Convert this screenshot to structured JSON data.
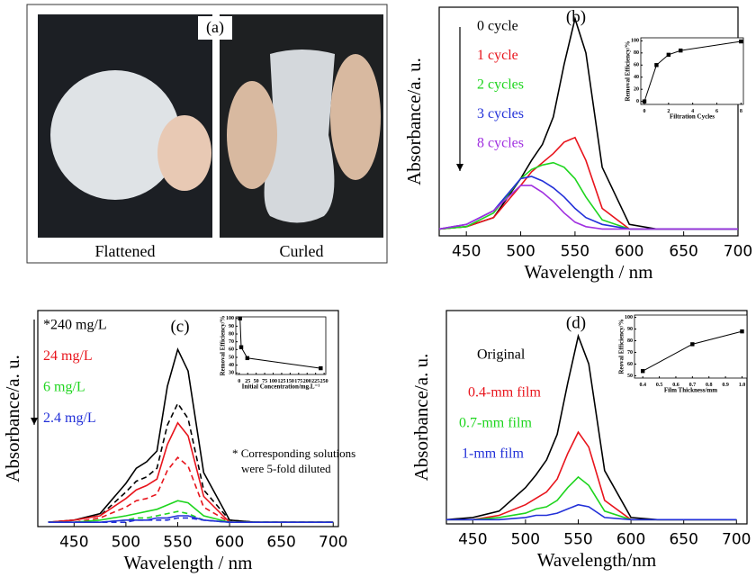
{
  "photo_panel": {
    "label": "(a)",
    "captions": [
      "Flattened",
      "Curled"
    ]
  },
  "chart_data": [
    {
      "type": "line",
      "panel_label": "(b)",
      "xlabel": "Wavelength / nm",
      "ylabel": "Absorbance/a. u.",
      "x": [
        425,
        450,
        475,
        500,
        510,
        520,
        530,
        540,
        550,
        560,
        575,
        600,
        625,
        650,
        675,
        700
      ],
      "xlim": [
        425,
        700
      ],
      "ylim": [
        0,
        1
      ],
      "xticks": [
        450,
        500,
        550,
        600,
        650,
        700
      ],
      "series": [
        {
          "name": "0 cycle",
          "color": "#000000",
          "values": [
            0.03,
            0.04,
            0.08,
            0.25,
            0.33,
            0.4,
            0.52,
            0.75,
            0.95,
            0.8,
            0.3,
            0.05,
            0.03,
            0.03,
            0.03,
            0.03
          ]
        },
        {
          "name": "1 cycle",
          "color": "#e8141c",
          "values": [
            0.03,
            0.04,
            0.08,
            0.22,
            0.28,
            0.32,
            0.36,
            0.41,
            0.43,
            0.33,
            0.12,
            0.03,
            0.03,
            0.03,
            0.03,
            0.03
          ]
        },
        {
          "name": "2 cycles",
          "color": "#1ed51e",
          "values": [
            0.03,
            0.04,
            0.1,
            0.25,
            0.29,
            0.31,
            0.32,
            0.3,
            0.25,
            0.17,
            0.07,
            0.03,
            0.03,
            0.03,
            0.03,
            0.03
          ]
        },
        {
          "name": "3 cycles",
          "color": "#2230d8",
          "values": [
            0.03,
            0.05,
            0.11,
            0.25,
            0.26,
            0.24,
            0.21,
            0.17,
            0.12,
            0.08,
            0.05,
            0.03,
            0.03,
            0.03,
            0.03,
            0.03
          ]
        },
        {
          "name": "8 cycles",
          "color": "#a030e0",
          "values": [
            0.03,
            0.05,
            0.11,
            0.22,
            0.22,
            0.19,
            0.15,
            0.1,
            0.06,
            0.04,
            0.03,
            0.03,
            0.03,
            0.03,
            0.03,
            0.03
          ]
        }
      ],
      "inset": {
        "type": "line",
        "markers": true,
        "color": "#000000",
        "xlabel": "Filtration Cycles",
        "ylabel": "Removal Efficiency/%",
        "x": [
          0,
          1,
          2,
          3,
          8
        ],
        "values": [
          0,
          60,
          77,
          84,
          99
        ],
        "xlim": [
          -0.3,
          8.2
        ],
        "ylim": [
          -5,
          105
        ],
        "xticks": [
          0,
          2,
          4,
          6,
          8
        ],
        "yticks": [
          0,
          20,
          40,
          60,
          80,
          100
        ]
      }
    },
    {
      "type": "line",
      "panel_label": "(c)",
      "xlabel": "Wavelength / nm",
      "ylabel": "Absorbance/a. u.",
      "annotation": [
        "* Corresponding solutions",
        "were 5-fold diluted"
      ],
      "x": [
        425,
        450,
        475,
        500,
        510,
        520,
        530,
        540,
        550,
        560,
        575,
        600,
        625,
        650,
        675,
        700
      ],
      "xlim": [
        415,
        705
      ],
      "ylim": [
        0,
        1
      ],
      "xticks": [
        450,
        500,
        550,
        600,
        650,
        700
      ],
      "series": [
        {
          "name": "*240 mg/L",
          "color": "#000000",
          "values": [
            0.02,
            0.03,
            0.06,
            0.2,
            0.27,
            0.3,
            0.35,
            0.65,
            0.82,
            0.72,
            0.25,
            0.03,
            0.02,
            0.02,
            0.02,
            0.02
          ],
          "diluted_values": [
            0.02,
            0.03,
            0.05,
            0.16,
            0.21,
            0.23,
            0.27,
            0.47,
            0.57,
            0.5,
            0.17,
            0.03,
            0.02,
            0.02,
            0.02,
            0.02
          ]
        },
        {
          "name": "24 mg/L",
          "color": "#e8141c",
          "values": [
            0.02,
            0.03,
            0.05,
            0.13,
            0.17,
            0.19,
            0.22,
            0.38,
            0.48,
            0.42,
            0.14,
            0.02,
            0.02,
            0.02,
            0.02,
            0.02
          ],
          "diluted_values": [
            0.02,
            0.02,
            0.04,
            0.09,
            0.12,
            0.13,
            0.15,
            0.26,
            0.32,
            0.28,
            0.09,
            0.02,
            0.02,
            0.02,
            0.02,
            0.02
          ]
        },
        {
          "name": "6 mg/L",
          "color": "#1ed51e",
          "values": [
            0.02,
            0.02,
            0.03,
            0.05,
            0.06,
            0.07,
            0.08,
            0.1,
            0.12,
            0.11,
            0.05,
            0.02,
            0.02,
            0.02,
            0.02,
            0.02
          ],
          "diluted_values": [
            0.02,
            0.02,
            0.02,
            0.03,
            0.04,
            0.04,
            0.05,
            0.06,
            0.07,
            0.06,
            0.03,
            0.02,
            0.02,
            0.02,
            0.02,
            0.02
          ]
        },
        {
          "name": "2.4 mg/L",
          "color": "#2230d8",
          "values": [
            0.02,
            0.02,
            0.02,
            0.03,
            0.03,
            0.03,
            0.04,
            0.04,
            0.05,
            0.05,
            0.03,
            0.02,
            0.02,
            0.02,
            0.02,
            0.02
          ],
          "diluted_values": [
            0.02,
            0.02,
            0.02,
            0.02,
            0.03,
            0.03,
            0.03,
            0.03,
            0.04,
            0.04,
            0.03,
            0.02,
            0.02,
            0.02,
            0.02,
            0.02
          ]
        }
      ],
      "inset": {
        "type": "line",
        "markers": true,
        "color": "#000000",
        "xlabel": "Initial Concentration/mg.L⁻¹",
        "ylabel": "Removal Efficiency/%",
        "x": [
          2.4,
          6,
          24,
          240
        ],
        "values": [
          100,
          63,
          49,
          36
        ],
        "xlim": [
          -10,
          255
        ],
        "ylim": [
          28,
          102
        ],
        "xticks": [
          0,
          25,
          50,
          75,
          100,
          125,
          150,
          175,
          200,
          225,
          250
        ],
        "yticks": [
          30,
          40,
          50,
          60,
          70,
          80,
          90,
          100
        ]
      }
    },
    {
      "type": "line",
      "panel_label": "(d)",
      "xlabel": "Wavelength/nm",
      "ylabel": "Absorbance/a. u.",
      "x": [
        425,
        450,
        475,
        500,
        510,
        520,
        530,
        540,
        550,
        560,
        575,
        600,
        625,
        650,
        675,
        700
      ],
      "xlim": [
        425,
        710
      ],
      "ylim": [
        0,
        1
      ],
      "xticks": [
        450,
        500,
        550,
        600,
        650,
        700
      ],
      "series": [
        {
          "name": "Original",
          "color": "#000000",
          "values": [
            0.02,
            0.03,
            0.06,
            0.17,
            0.23,
            0.3,
            0.42,
            0.66,
            0.88,
            0.75,
            0.25,
            0.03,
            0.02,
            0.02,
            0.02,
            0.02
          ]
        },
        {
          "name": "0.4-mm film",
          "color": "#e8141c",
          "values": [
            0.02,
            0.02,
            0.04,
            0.09,
            0.12,
            0.15,
            0.21,
            0.33,
            0.43,
            0.36,
            0.11,
            0.02,
            0.02,
            0.02,
            0.02,
            0.02
          ]
        },
        {
          "name": "0.7-mm film",
          "color": "#1ed51e",
          "values": [
            0.02,
            0.02,
            0.03,
            0.05,
            0.07,
            0.08,
            0.11,
            0.17,
            0.22,
            0.18,
            0.06,
            0.02,
            0.02,
            0.02,
            0.02,
            0.02
          ]
        },
        {
          "name": "1-mm film",
          "color": "#2230d8",
          "values": [
            0.02,
            0.02,
            0.02,
            0.03,
            0.04,
            0.04,
            0.05,
            0.07,
            0.09,
            0.08,
            0.03,
            0.02,
            0.02,
            0.02,
            0.02,
            0.02
          ]
        }
      ],
      "inset": {
        "type": "line",
        "markers": true,
        "color": "#000000",
        "xlabel": "Film Thickness/mm",
        "ylabel": "Reoval Efficiency/%",
        "x": [
          0.4,
          0.7,
          1.0
        ],
        "values": [
          54,
          77,
          88
        ],
        "xlim": [
          0.35,
          1.03
        ],
        "ylim": [
          48,
          102
        ],
        "xticks": [
          0.4,
          0.5,
          0.6,
          0.7,
          0.8,
          0.9,
          {
            "value": 1.0,
            "label": "1.0"
          }
        ],
        "yticks": [
          50,
          60,
          70,
          80,
          90,
          100
        ]
      }
    }
  ]
}
